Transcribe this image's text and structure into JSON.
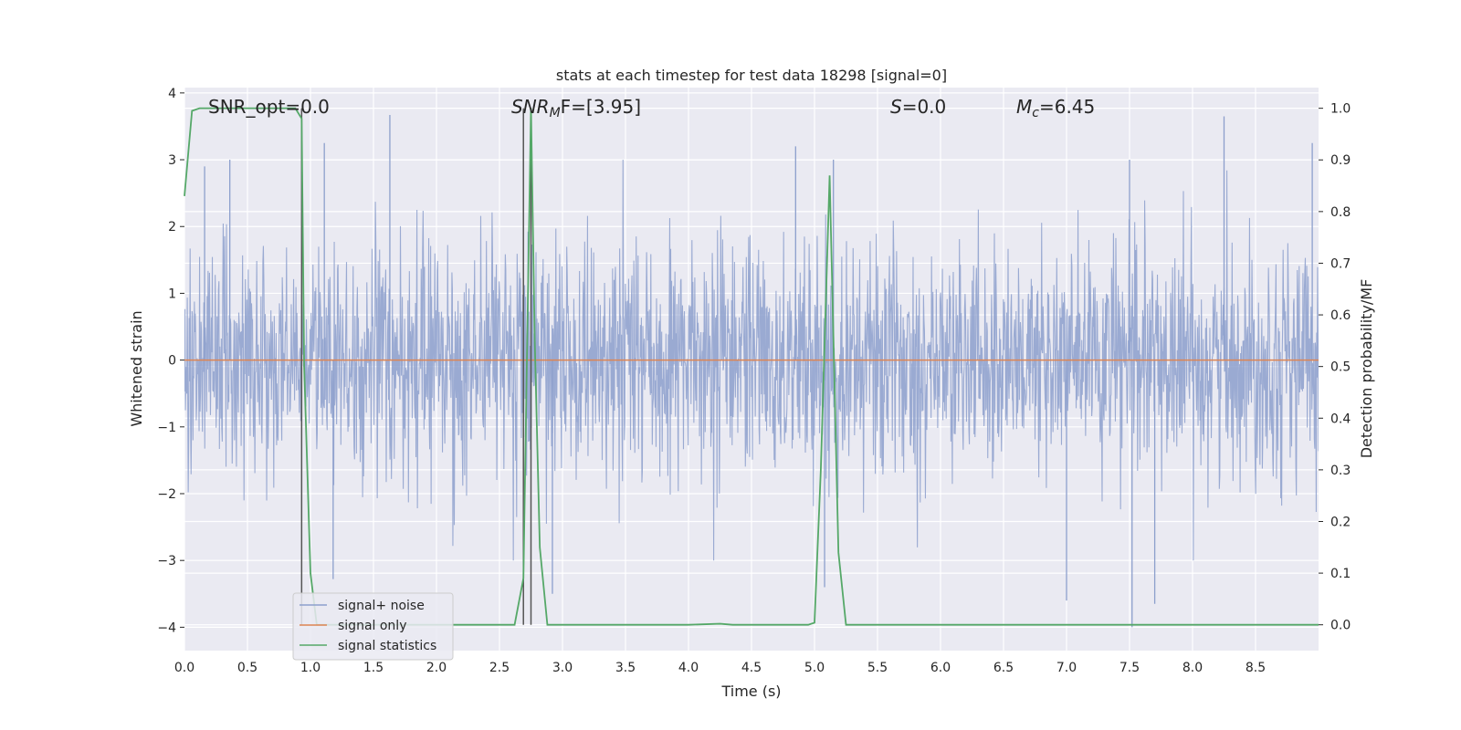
{
  "chart_data": {
    "type": "line",
    "title": "stats at each timestep for test data 18298 [signal=0]",
    "xlabel": "Time (s)",
    "ylabel_left": "Whitened strain",
    "ylabel_right": "Detection probability/MF",
    "xlim": [
      0.0,
      9.0
    ],
    "ylim_left": [
      -4.35,
      4.08
    ],
    "ylim_right": [
      -0.05,
      1.04
    ],
    "grid": true,
    "legend_position": "bottom-left",
    "x_ticks": [
      "0.0",
      "0.5",
      "1.0",
      "1.5",
      "2.0",
      "2.5",
      "3.0",
      "3.5",
      "4.0",
      "4.5",
      "5.0",
      "5.5",
      "6.0",
      "6.5",
      "7.0",
      "7.5",
      "8.0",
      "8.5"
    ],
    "y_ticks_left": [
      "−4",
      "−3",
      "−2",
      "−1",
      "0",
      "1",
      "2",
      "3",
      "4"
    ],
    "y_ticks_right": [
      "0.0",
      "0.1",
      "0.2",
      "0.3",
      "0.4",
      "0.5",
      "0.6",
      "0.7",
      "0.8",
      "0.9",
      "1.0"
    ],
    "annotations": {
      "snr_opt": "SNR_opt=0.0",
      "snr_mf_main": "SNR",
      "snr_mf_sub": "M",
      "snr_mf_rest": "F=[3.95]",
      "s_main": "S",
      "s_rest": "=0.0",
      "mc_main": "M",
      "mc_sub": "c",
      "mc_rest": "=6.45"
    },
    "vertical_markers_x": [
      0.93,
      2.69,
      2.75
    ],
    "series": [
      {
        "name": "signal+ noise",
        "color": "#8c9fcc",
        "axis": "left",
        "description_values": "dense whitened noise, mostly within ±1.7, spikes up to 3.7 and down to −4.0",
        "peak_spikes": [
          {
            "x": 0.16,
            "y": 2.9
          },
          {
            "x": 0.36,
            "y": 3.0
          },
          {
            "x": 1.11,
            "y": 3.25
          },
          {
            "x": 1.63,
            "y": 3.67
          },
          {
            "x": 4.85,
            "y": 3.2
          },
          {
            "x": 5.15,
            "y": 3.0
          },
          {
            "x": 7.5,
            "y": 3.0
          },
          {
            "x": 8.25,
            "y": 3.65
          },
          {
            "x": 8.95,
            "y": 3.25
          },
          {
            "x": 1.18,
            "y": -3.28
          },
          {
            "x": 2.92,
            "y": -3.5
          },
          {
            "x": 7.0,
            "y": -3.6
          },
          {
            "x": 7.52,
            "y": -4.0
          },
          {
            "x": 7.7,
            "y": -3.65
          },
          {
            "x": 5.08,
            "y": -3.4
          }
        ]
      },
      {
        "name": "signal only",
        "color": "#dd8452",
        "axis": "left",
        "x": [
          0.0,
          9.0
        ],
        "y": [
          0.0,
          0.0
        ]
      },
      {
        "name": "signal statistics",
        "color": "#55a868",
        "axis": "right",
        "x": [
          0.0,
          0.06,
          0.12,
          0.2,
          0.3,
          0.5,
          0.7,
          0.88,
          0.93,
          0.95,
          1.0,
          1.05,
          1.2,
          1.5,
          2.0,
          2.5,
          2.62,
          2.69,
          2.72,
          2.75,
          2.78,
          2.82,
          2.88,
          3.0,
          3.5,
          4.0,
          4.25,
          4.35,
          4.5,
          4.75,
          4.95,
          5.0,
          5.05,
          5.12,
          5.19,
          5.25,
          5.5,
          6.0,
          7.0,
          8.0,
          9.0
        ],
        "y": [
          0.83,
          0.995,
          1.0,
          1.0,
          1.0,
          1.0,
          1.0,
          1.0,
          0.98,
          0.5,
          0.1,
          0.0,
          0.0,
          0.0,
          0.0,
          0.0,
          0.0,
          0.09,
          0.55,
          1.0,
          0.55,
          0.15,
          0.0,
          0.0,
          0.0,
          0.0,
          0.002,
          0.0,
          0.0,
          0.0,
          0.0,
          0.004,
          0.3,
          0.87,
          0.14,
          0.0,
          0.0,
          0.0,
          0.0,
          0.0,
          0.0
        ]
      }
    ]
  }
}
